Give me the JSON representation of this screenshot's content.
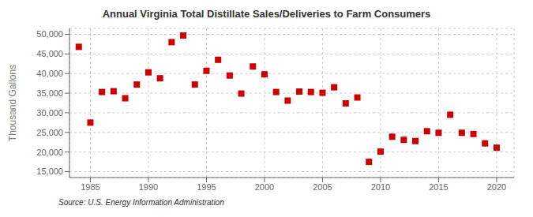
{
  "chart_data": {
    "type": "scatter",
    "title": "Annual Virginia Total Distillate Sales/Deliveries to Farm Consumers",
    "ylabel": "Thousand Gallons",
    "annotations": [
      "Source: U.S. Energy Information Administration"
    ],
    "x": [
      1984,
      1985,
      1986,
      1987,
      1988,
      1989,
      1990,
      1991,
      1992,
      1993,
      1994,
      1995,
      1996,
      1997,
      1998,
      1999,
      2000,
      2001,
      2002,
      2003,
      2004,
      2005,
      2006,
      2007,
      2008,
      2009,
      2010,
      2011,
      2012,
      2013,
      2014,
      2015,
      2016,
      2017,
      2018,
      2019,
      2020
    ],
    "values": [
      46800,
      27500,
      35300,
      35500,
      33700,
      37200,
      40300,
      38800,
      48000,
      49700,
      37200,
      40700,
      43500,
      39500,
      34900,
      41800,
      39800,
      35300,
      33100,
      35400,
      35300,
      35100,
      36500,
      32400,
      33900,
      17500,
      20100,
      23900,
      23100,
      22800,
      25300,
      24900,
      29500,
      24900,
      24600,
      22200,
      21100
    ],
    "color": "#cc0000",
    "marker": "square",
    "xlim": [
      1983.2,
      2021.5
    ],
    "ylim": [
      13500,
      51500
    ],
    "xticks": [
      1985,
      1990,
      1995,
      2000,
      2005,
      2010,
      2015,
      2020
    ],
    "yticks": [
      {
        "value": 15000,
        "label": "15,000"
      },
      {
        "value": 20000,
        "label": "20,000"
      },
      {
        "value": 25000,
        "label": "25,000"
      },
      {
        "value": 30000,
        "label": "30,000"
      },
      {
        "value": 35000,
        "label": "35,000"
      },
      {
        "value": 40000,
        "label": "40,000"
      },
      {
        "value": 45000,
        "label": "45,000"
      },
      {
        "value": 50000,
        "label": "50,000"
      }
    ],
    "grid": true
  }
}
